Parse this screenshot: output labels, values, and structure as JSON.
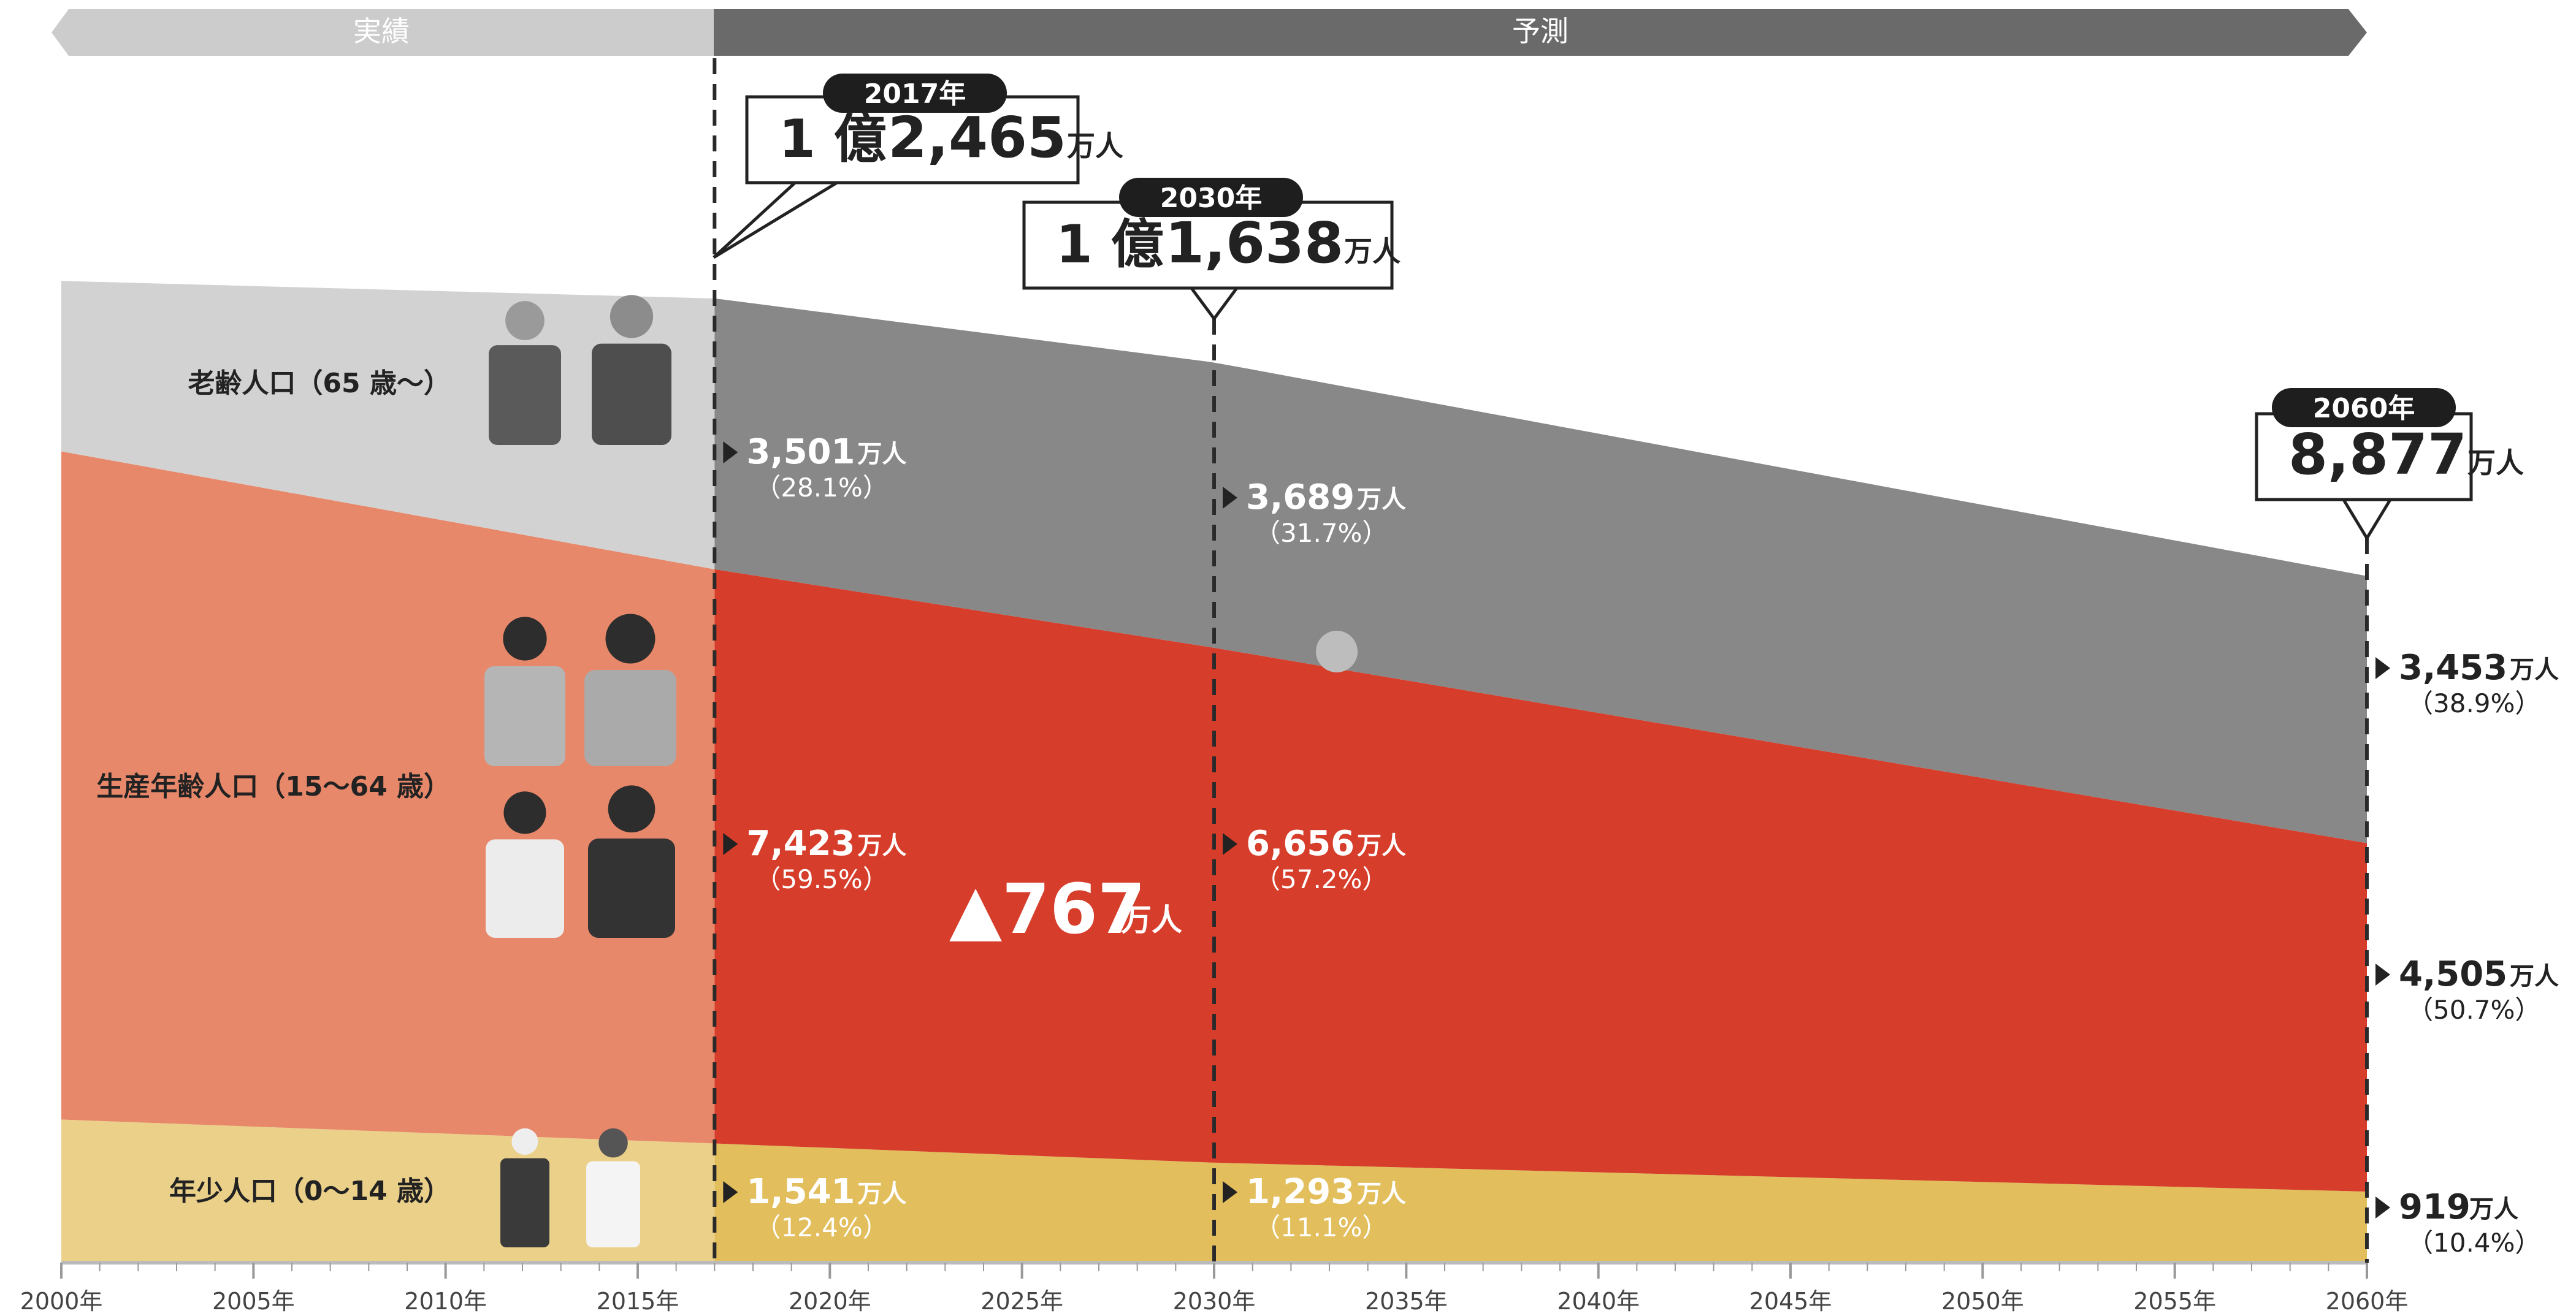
{
  "header": {
    "actual_label": "実績",
    "forecast_label": "予測"
  },
  "chart_data": {
    "type": "area",
    "stacked": true,
    "x_ticks": [
      "2000年",
      "2005年",
      "2010年",
      "2015年",
      "2020年",
      "2025年",
      "2030年",
      "2035年",
      "2040年",
      "2045年",
      "2050年",
      "2055年",
      "2060年"
    ],
    "series": [
      {
        "name": "年少人口（0～14 歳）",
        "color_actual": "#ebd08a",
        "color_forecast": "#e2be5c",
        "x": [
          2000,
          2017,
          2030,
          2060
        ],
        "values": [
          1850,
          1541,
          1293,
          919
        ]
      },
      {
        "name": "生産年齢人口（15～64 歳）",
        "color_actual": "#e8886a",
        "color_forecast": "#d63d2a",
        "x": [
          2000,
          2017,
          2030,
          2060
        ],
        "values": [
          8638,
          7423,
          6656,
          4505
        ]
      },
      {
        "name": "老齢人口（65 歳～）",
        "color_actual": "#d2d2d2",
        "color_forecast": "#888888",
        "x": [
          2000,
          2017,
          2030,
          2060
        ],
        "values": [
          2204,
          3501,
          3689,
          3453
        ]
      }
    ],
    "totals": [
      {
        "year_label": "2017年",
        "prefix": "1 億",
        "number": "2,465",
        "unit": "万人"
      },
      {
        "year_label": "2030年",
        "prefix": "1 億",
        "number": "1,638",
        "unit": "万人"
      },
      {
        "year_label": "2060年",
        "prefix": "",
        "number": "8,877",
        "unit": "万人"
      }
    ],
    "annotations": {
      "2017": [
        {
          "value": "3,501",
          "unit": "万人",
          "pct": "（28.1%）"
        },
        {
          "value": "7,423",
          "unit": "万人",
          "pct": "（59.5%）"
        },
        {
          "value": "1,541",
          "unit": "万人",
          "pct": "（12.4%）"
        }
      ],
      "2030": [
        {
          "value": "3,689",
          "unit": "万人",
          "pct": "（31.7%）"
        },
        {
          "value": "6,656",
          "unit": "万人",
          "pct": "（57.2%）"
        },
        {
          "value": "1,293",
          "unit": "万人",
          "pct": "（11.1%）"
        }
      ],
      "2060": [
        {
          "value": "3,453",
          "unit": "万人",
          "pct": "（38.9%）"
        },
        {
          "value": "4,505",
          "unit": "万人",
          "pct": "（50.7%）"
        },
        {
          "value": "919",
          "unit": "万人",
          "pct": "（10.4%）"
        }
      ]
    },
    "decline": {
      "text": "▲767",
      "unit": "万人"
    },
    "category_labels": [
      "老齢人口（65 歳～）",
      "生産年齢人口（15～64 歳）",
      "年少人口（0～14 歳）"
    ]
  }
}
